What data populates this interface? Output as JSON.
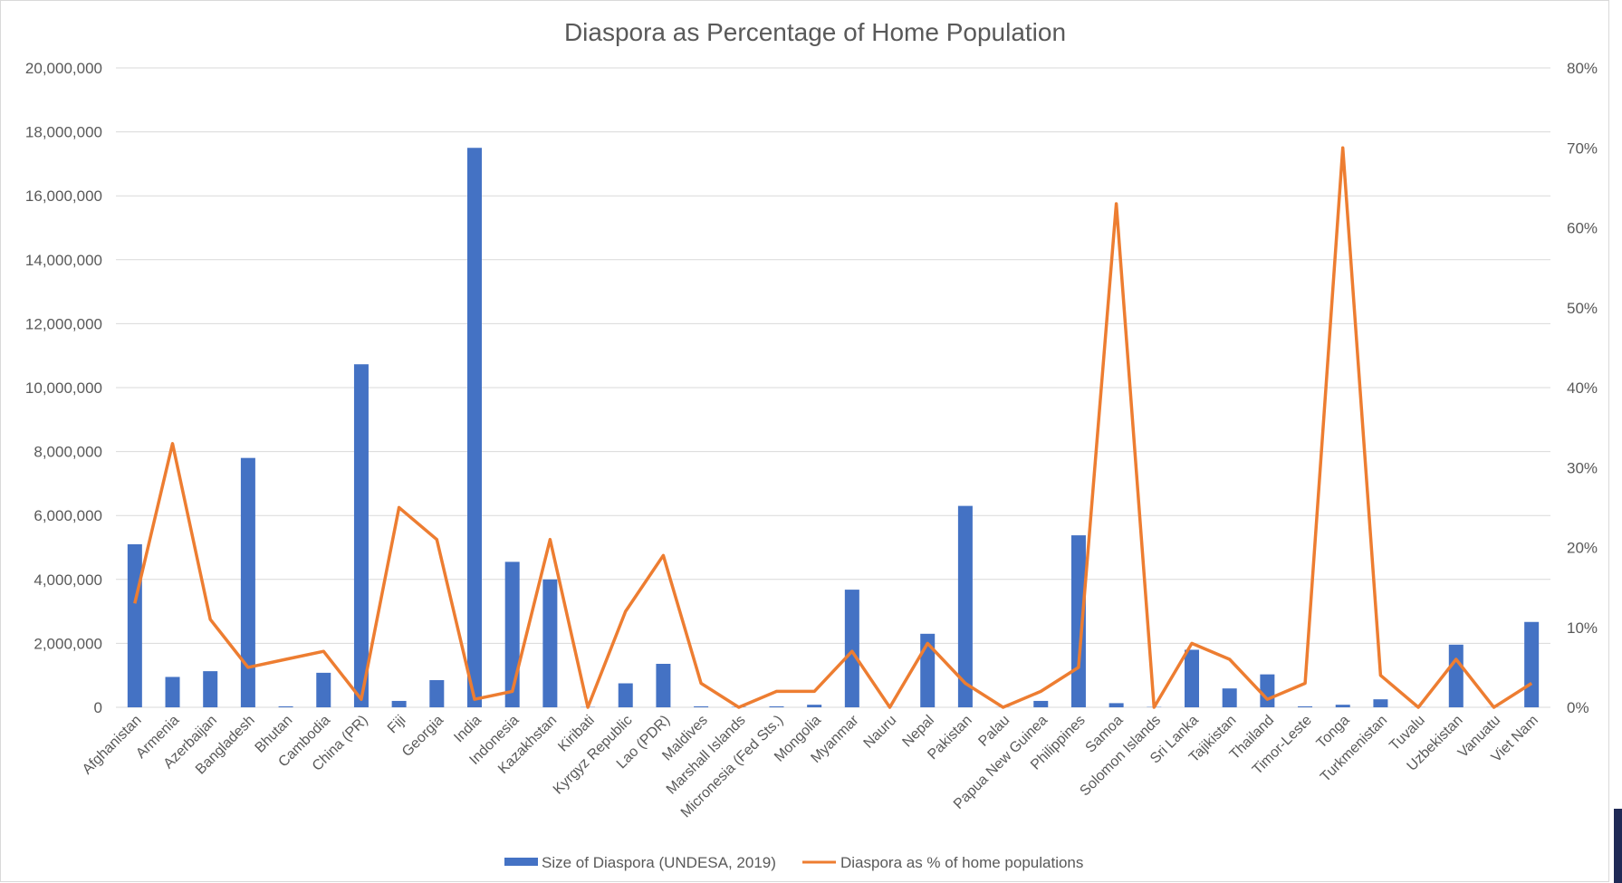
{
  "chart_data": {
    "type": "bar",
    "title": "Diaspora as Percentage of Home Population",
    "categories": [
      "Afghanistan",
      "Armenia",
      "Azerbaijan",
      "Bangladesh",
      "Bhutan",
      "Cambodia",
      "China (PR)",
      "Fiji",
      "Georgia",
      "India",
      "Indonesia",
      "Kazakhstan",
      "Kiribati",
      "Kyrgyz Republic",
      "Lao (PDR)",
      "Maldives",
      "Marshall Islands",
      "Micronesia (Fed Sts.)",
      "Mongolia",
      "Myanmar",
      "Nauru",
      "Nepal",
      "Pakistan",
      "Palau",
      "Papua New Guinea",
      "Philippines",
      "Samoa",
      "Solomon Islands",
      "Sri Lanka",
      "Tajikistan",
      "Thailand",
      "Timor-Leste",
      "Tonga",
      "Turkmenistan",
      "Tuvalu",
      "Uzbekistan",
      "Vanuatu",
      "Viet Nam"
    ],
    "series": [
      {
        "name": "Size of Diaspora (UNDESA, 2019)",
        "type": "bar",
        "axis": "left",
        "color": "#4472c4",
        "values": [
          5100000,
          950000,
          1130000,
          7800000,
          30000,
          1080000,
          10730000,
          200000,
          850000,
          17500000,
          4550000,
          4000000,
          8000,
          750000,
          1360000,
          30000,
          12000,
          30000,
          80000,
          3680000,
          4000,
          2300000,
          6300000,
          5000,
          200000,
          5380000,
          130000,
          10000,
          1800000,
          590000,
          1030000,
          30000,
          80000,
          250000,
          5000,
          1960000,
          5000,
          2670000
        ]
      },
      {
        "name": "Diaspora as % of home populations",
        "type": "line",
        "axis": "right",
        "color": "#ed7d31",
        "values": [
          13,
          33,
          11,
          5,
          6,
          7,
          1,
          25,
          21,
          1,
          2,
          21,
          0,
          12,
          19,
          3,
          0,
          2,
          2,
          7,
          0,
          8,
          3,
          0,
          2,
          5,
          63,
          0,
          8,
          6,
          1,
          3,
          70,
          4,
          0,
          6,
          0,
          3
        ]
      }
    ],
    "y_left": {
      "min": 0,
      "max": 20000000,
      "ticks": [
        "0",
        "2,000,000",
        "4,000,000",
        "6,000,000",
        "8,000,000",
        "10,000,000",
        "12,000,000",
        "14,000,000",
        "16,000,000",
        "18,000,000",
        "20,000,000"
      ]
    },
    "y_right": {
      "min": 0,
      "max": 80,
      "ticks": [
        "0%",
        "10%",
        "20%",
        "30%",
        "40%",
        "50%",
        "60%",
        "70%",
        "80%"
      ]
    },
    "grid": true,
    "legend_position": "bottom"
  }
}
